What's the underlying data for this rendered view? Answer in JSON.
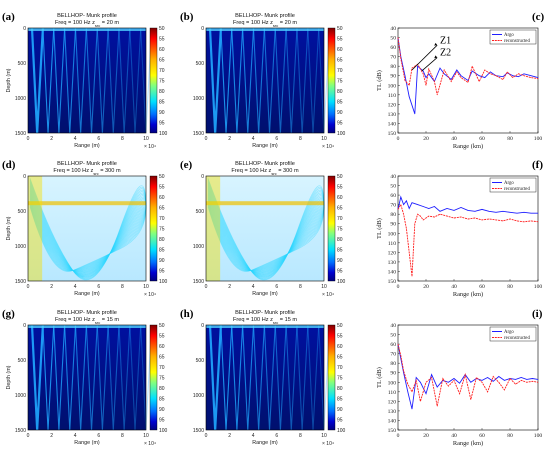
{
  "common": {
    "panel_title": "BELLHOP- Munk profile",
    "depth_label": "Depth (m)",
    "range_label": "Range (m)",
    "range_exp": "× 10⁴",
    "depth_ticks": [
      "0",
      "500",
      "1000",
      "1500"
    ],
    "range_ticks": [
      "0",
      "2",
      "4",
      "6",
      "8",
      "10"
    ],
    "colorbar_ticks": [
      "50",
      "55",
      "60",
      "65",
      "70",
      "75",
      "80",
      "85",
      "90",
      "95",
      "100"
    ],
    "tl_label": "TL (dB)",
    "tl_xlabel": "Range (km)",
    "tl_xticks": [
      "0",
      "20",
      "40",
      "60",
      "80",
      "100"
    ],
    "tl_yticks": [
      "40",
      "50",
      "60",
      "70",
      "80",
      "90",
      "100",
      "110",
      "120",
      "130",
      "140",
      "150"
    ],
    "legend": [
      "Argo",
      "reconstructed"
    ],
    "colors": {
      "argo": "#1f1fff",
      "reconstructed": "#ff1f1f"
    }
  },
  "panels": [
    {
      "id": "a",
      "label": "(a)",
      "freq": "Freq = 100 Hz",
      "zsrc": "z",
      "zsrc_sub": "src",
      "zsrc_val": " = 20 m"
    },
    {
      "id": "b",
      "label": "(b)",
      "freq": "Freq = 100 Hz",
      "zsrc": "z",
      "zsrc_sub": "src",
      "zsrc_val": " = 20 m"
    },
    {
      "id": "d",
      "label": "(d)",
      "freq": "Freq = 100 Hz",
      "zsrc": "z",
      "zsrc_sub": "src",
      "zsrc_val": " = 300 m"
    },
    {
      "id": "e",
      "label": "(e)",
      "freq": "Freq = 100 Hz",
      "zsrc": "z",
      "zsrc_sub": "src",
      "zsrc_val": " = 300 m"
    },
    {
      "id": "g",
      "label": "(g)",
      "freq": "Freq = 100 Hz",
      "zsrc": "z",
      "zsrc_sub": "src",
      "zsrc_val": " = 15 m"
    },
    {
      "id": "h",
      "label": "(h)",
      "freq": "Freq = 100 Hz",
      "zsrc": "z",
      "zsrc_sub": "src",
      "zsrc_val": " = 15 m"
    }
  ],
  "tl_panels": [
    {
      "id": "c",
      "label": "(c)",
      "annotations": [
        "Z1",
        "Z2"
      ]
    },
    {
      "id": "f",
      "label": "(f)",
      "annotations": []
    },
    {
      "id": "i",
      "label": "(i)",
      "annotations": []
    }
  ],
  "chart_data": [
    {
      "type": "line",
      "panel": "c",
      "xlabel": "Range (km)",
      "ylabel": "TL (dB)",
      "xlim": [
        0,
        100
      ],
      "ylim": [
        150,
        40
      ],
      "y_reversed": true,
      "series": [
        {
          "name": "Argo",
          "x": [
            0,
            2,
            5,
            8,
            12,
            14,
            18,
            20,
            22,
            26,
            30,
            33,
            38,
            42,
            45,
            50,
            53,
            58,
            62,
            66,
            70,
            75,
            78,
            82,
            86,
            90,
            95,
            100
          ],
          "y": [
            50,
            70,
            90,
            112,
            130,
            80,
            85,
            92,
            88,
            96,
            82,
            88,
            94,
            84,
            90,
            95,
            85,
            90,
            92,
            86,
            90,
            91,
            87,
            90,
            91,
            88,
            90,
            92
          ]
        },
        {
          "name": "reconstructed",
          "x": [
            0,
            2,
            5,
            8,
            10,
            14,
            18,
            20,
            22,
            26,
            28,
            33,
            38,
            42,
            45,
            50,
            53,
            58,
            62,
            66,
            70,
            75,
            78,
            82,
            86,
            90,
            95,
            100
          ],
          "y": [
            50,
            72,
            95,
            100,
            82,
            78,
            88,
            100,
            83,
            96,
            110,
            84,
            96,
            86,
            92,
            97,
            80,
            96,
            84,
            88,
            90,
            94,
            86,
            92,
            88,
            90,
            92,
            93
          ]
        }
      ]
    },
    {
      "type": "line",
      "panel": "f",
      "xlabel": "Range (km)",
      "ylabel": "TL (dB)",
      "xlim": [
        0,
        100
      ],
      "ylim": [
        150,
        40
      ],
      "y_reversed": true,
      "series": [
        {
          "name": "Argo",
          "x": [
            0,
            2,
            4,
            6,
            8,
            10,
            14,
            18,
            22,
            26,
            30,
            35,
            40,
            45,
            50,
            55,
            60,
            65,
            70,
            75,
            80,
            85,
            90,
            95,
            100
          ],
          "y": [
            75,
            62,
            70,
            66,
            74,
            68,
            70,
            72,
            74,
            72,
            77,
            74,
            76,
            73,
            76,
            77,
            75,
            77,
            78,
            77,
            78,
            79,
            78,
            79,
            79
          ]
        },
        {
          "name": "reconstructed",
          "x": [
            0,
            2,
            4,
            6,
            8,
            10,
            12,
            14,
            16,
            18,
            20,
            22,
            26,
            30,
            35,
            40,
            45,
            50,
            55,
            60,
            65,
            70,
            75,
            80,
            85,
            90,
            95,
            100
          ],
          "y": [
            75,
            70,
            80,
            95,
            120,
            145,
            90,
            80,
            82,
            86,
            84,
            82,
            83,
            80,
            82,
            84,
            83,
            85,
            84,
            86,
            85,
            86,
            87,
            85,
            87,
            88,
            87,
            88
          ]
        }
      ]
    },
    {
      "type": "line",
      "panel": "i",
      "xlabel": "Range (km)",
      "ylabel": "TL (dB)",
      "xlim": [
        0,
        100
      ],
      "ylim": [
        150,
        40
      ],
      "y_reversed": true,
      "series": [
        {
          "name": "Argo",
          "x": [
            0,
            2,
            4,
            7,
            10,
            13,
            16,
            20,
            24,
            28,
            32,
            36,
            40,
            44,
            48,
            52,
            56,
            60,
            64,
            68,
            72,
            76,
            80,
            84,
            88,
            92,
            96,
            100
          ],
          "y": [
            60,
            75,
            90,
            110,
            128,
            95,
            100,
            112,
            92,
            105,
            98,
            100,
            96,
            101,
            92,
            100,
            96,
            98,
            95,
            99,
            94,
            98,
            96,
            97,
            95,
            97,
            96,
            97
          ]
        },
        {
          "name": "reconstructed",
          "x": [
            0,
            2,
            4,
            7,
            10,
            13,
            16,
            20,
            24,
            28,
            32,
            36,
            40,
            44,
            48,
            52,
            56,
            60,
            64,
            68,
            72,
            76,
            80,
            84,
            88,
            92,
            96,
            100
          ],
          "y": [
            60,
            72,
            88,
            102,
            110,
            98,
            120,
            100,
            95,
            125,
            96,
            104,
            98,
            112,
            92,
            118,
            95,
            100,
            110,
            94,
            100,
            108,
            96,
            102,
            98,
            100,
            99,
            100
          ]
        }
      ]
    }
  ]
}
